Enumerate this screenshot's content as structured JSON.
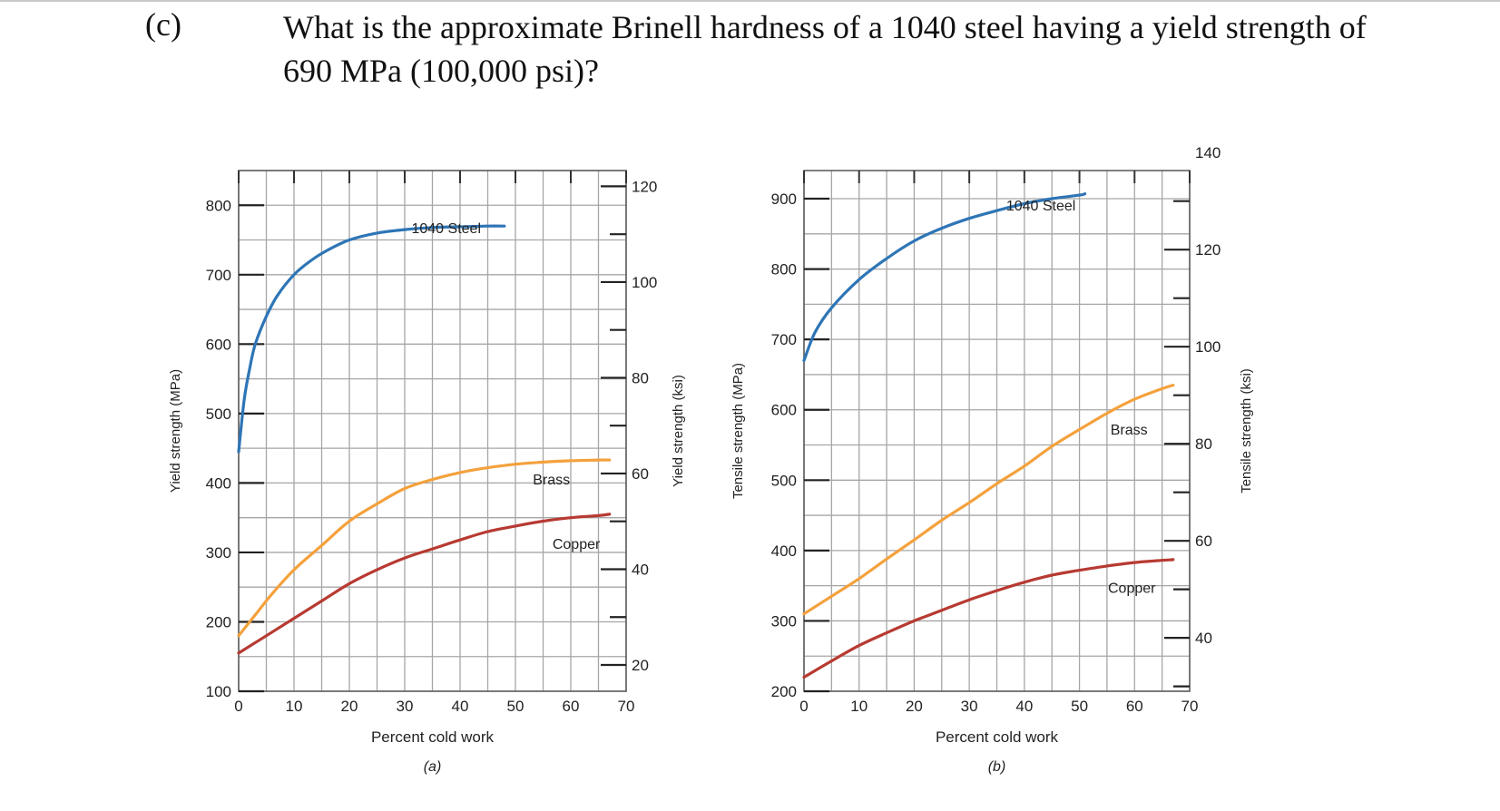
{
  "question": {
    "label": "(c)",
    "text": "What is the approximate Brinell hardness of a 1040 steel having a yield strength of 690 MPa (100,000 psi)?"
  },
  "colors": {
    "steel": "#2e75b6",
    "brass": "#f4a13c",
    "copper": "#b73a32",
    "grid": "#a6a6a6",
    "axis": "#555555"
  },
  "chart_data": [
    {
      "type": "line",
      "panel_label": "(a)",
      "xlabel": "Percent cold work",
      "ylabel": "Yield strength (MPa)",
      "ylabel_right": "Yield strength (ksi)",
      "xlim": [
        0,
        70
      ],
      "ylim": [
        100,
        850
      ],
      "ylim_right_ksi": [
        14.5,
        123.3
      ],
      "x_ticks": [
        "0",
        "10",
        "20",
        "30",
        "40",
        "50",
        "60",
        "70"
      ],
      "y_ticks": [
        "100",
        "200",
        "300",
        "400",
        "500",
        "600",
        "700",
        "800"
      ],
      "y_ticks_right": [
        "20",
        "40",
        "60",
        "80",
        "100",
        "120"
      ],
      "grid": true,
      "series": [
        {
          "name": "1040 Steel",
          "key": "steel",
          "x": [
            0,
            1,
            2,
            3,
            5,
            7,
            10,
            13,
            16,
            20,
            25,
            30,
            35,
            40,
            45,
            48
          ],
          "y": [
            445,
            520,
            565,
            600,
            640,
            670,
            700,
            720,
            735,
            750,
            760,
            765,
            768,
            769,
            770,
            770
          ]
        },
        {
          "name": "Brass",
          "key": "brass",
          "x": [
            0,
            3,
            6,
            10,
            15,
            20,
            25,
            30,
            35,
            40,
            45,
            50,
            55,
            60,
            65,
            67
          ],
          "y": [
            180,
            210,
            240,
            275,
            310,
            345,
            370,
            392,
            405,
            415,
            422,
            427,
            430,
            432,
            433,
            433
          ]
        },
        {
          "name": "Copper",
          "key": "copper",
          "x": [
            0,
            5,
            10,
            15,
            20,
            25,
            30,
            35,
            40,
            45,
            50,
            55,
            60,
            65,
            67
          ],
          "y": [
            155,
            180,
            205,
            230,
            255,
            275,
            292,
            305,
            318,
            330,
            338,
            345,
            350,
            353,
            355
          ]
        }
      ]
    },
    {
      "type": "line",
      "panel_label": "(b)",
      "xlabel": "Percent cold work",
      "ylabel": "Tensile strength (MPa)",
      "ylabel_right": "Tensile strength (ksi)",
      "xlim": [
        0,
        70
      ],
      "ylim": [
        200,
        940
      ],
      "ylim_right_ksi": [
        29,
        136.3
      ],
      "x_ticks": [
        "0",
        "10",
        "20",
        "30",
        "40",
        "50",
        "60",
        "70"
      ],
      "y_ticks": [
        "200",
        "300",
        "400",
        "500",
        "600",
        "700",
        "800",
        "900"
      ],
      "y_ticks_right": [
        "40",
        "60",
        "80",
        "100",
        "120",
        "140"
      ],
      "grid": true,
      "series": [
        {
          "name": "1040 Steel",
          "key": "steel",
          "x": [
            0,
            2,
            5,
            10,
            15,
            20,
            25,
            30,
            35,
            40,
            45,
            50,
            51
          ],
          "y": [
            670,
            710,
            745,
            785,
            815,
            840,
            858,
            872,
            883,
            893,
            900,
            905,
            907
          ]
        },
        {
          "name": "Brass",
          "key": "brass",
          "x": [
            0,
            5,
            10,
            15,
            20,
            25,
            30,
            35,
            40,
            45,
            50,
            55,
            60,
            65,
            67
          ],
          "y": [
            310,
            335,
            360,
            388,
            415,
            443,
            468,
            495,
            520,
            548,
            572,
            595,
            615,
            630,
            635
          ]
        },
        {
          "name": "Copper",
          "key": "copper",
          "x": [
            0,
            5,
            10,
            15,
            20,
            25,
            30,
            35,
            40,
            45,
            50,
            55,
            60,
            65,
            67
          ],
          "y": [
            220,
            243,
            265,
            283,
            300,
            315,
            330,
            343,
            355,
            365,
            372,
            378,
            383,
            386,
            387
          ]
        }
      ]
    }
  ]
}
